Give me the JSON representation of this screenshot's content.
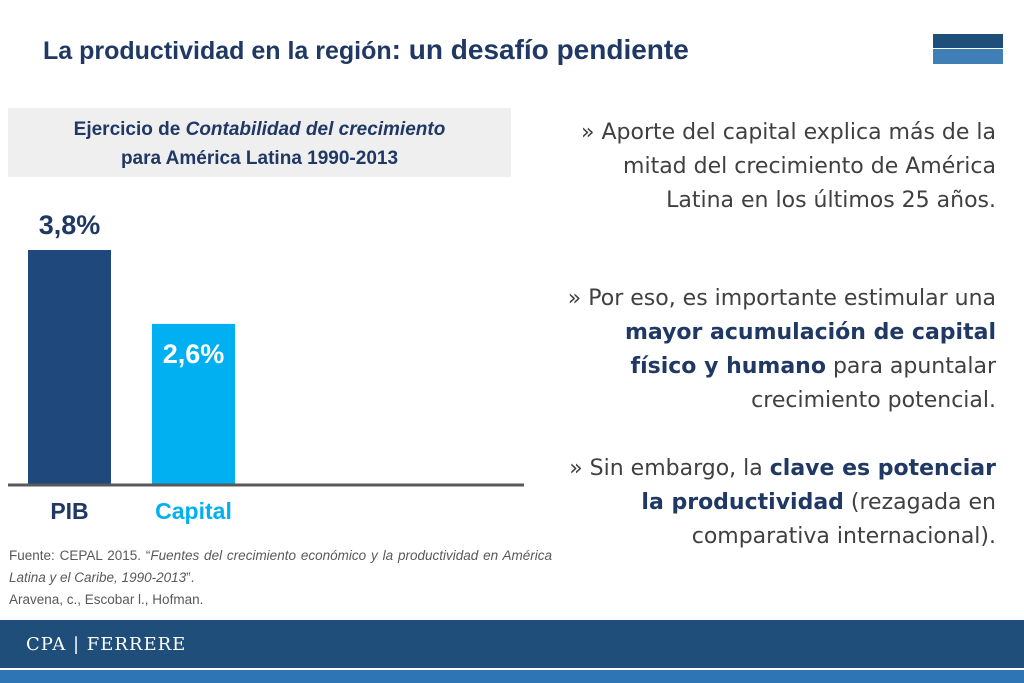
{
  "header": {
    "title_part1": "La productividad en la región",
    "title_part2": ": un desafío pendiente"
  },
  "chart_box": {
    "line1_prefix": "Ejercicio de ",
    "line1_italic": "Contabilidad del crecimiento",
    "line2": "para América Latina 1990-2013"
  },
  "chart_data": {
    "type": "bar",
    "title": "Ejercicio de Contabilidad del crecimiento para América Latina 1990-2013",
    "categories": [
      "PIB",
      "Capital"
    ],
    "values": [
      3.8,
      2.6
    ],
    "value_labels": [
      "3,8%",
      "2,6%"
    ],
    "colors": [
      "#1f497d",
      "#00b0f0"
    ],
    "xlabel": "",
    "ylabel": "",
    "ylim": [
      0,
      3.8
    ],
    "grid": false
  },
  "bullets": {
    "b1_marker": "» ",
    "b1_text": "Aporte del capital explica más de la mitad del crecimiento de América Latina en los últimos 25 años.",
    "b2_marker": "» ",
    "b2_pre": "Por eso, es importante estimular una ",
    "b2_bold": "mayor acumulación de capital físico y humano",
    "b2_post": " para apuntalar crecimiento potencial.",
    "b3_marker": "» ",
    "b3_pre": "Sin embargo, la ",
    "b3_bold": "clave es potenciar la productividad",
    "b3_post": " (rezagada en comparativa internacional)."
  },
  "source": {
    "prefix": "Fuente: CEPAL 2015. “",
    "italic": "Fuentes del crecimiento económico y la productividad en América Latina y el Caribe, 1990-2013",
    "suffix": "”.",
    "authors": " Aravena, c., Escobar l., Hofman."
  },
  "footer": {
    "brand": "CPA | FERRERE"
  }
}
